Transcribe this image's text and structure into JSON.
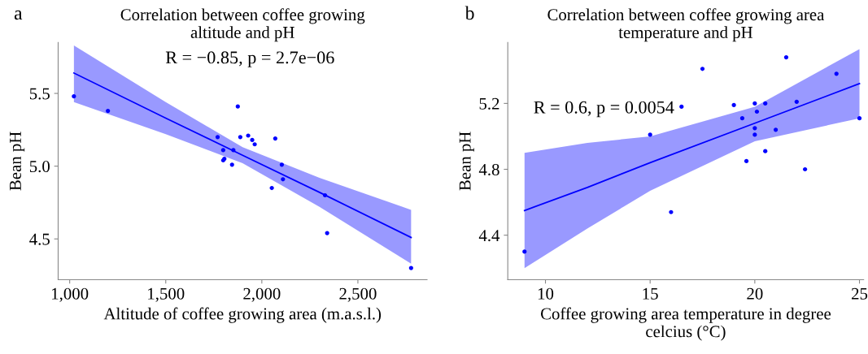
{
  "chart_data": [
    {
      "type": "scatter",
      "title": "Correlation between coffee growing\naltitude and pH",
      "xlabel": "Altitude of coffee growing area (m.a.s.l.)",
      "ylabel": "Bean pH",
      "annotations": [
        "a",
        "R = −0.85, p = 2.7e−06"
      ],
      "xlim": [
        940,
        2860
      ],
      "xticks": [
        {
          "value": 1000,
          "label": "1,000"
        },
        {
          "value": 1500,
          "label": "1,500"
        },
        {
          "value": 2000,
          "label": "2,000"
        },
        {
          "value": 2500,
          "label": "2,500"
        }
      ],
      "ylim": [
        4.22,
        5.85
      ],
      "yticks": [
        4.5,
        {
          "value": 5.0,
          "label": "5.0"
        },
        5.5
      ],
      "grid": false,
      "series": [
        {
          "marker": "circle",
          "color": "#0000ff",
          "x": [
            1022,
            1199,
            1770,
            1875,
            1799,
            1852,
            1799,
            1805,
            1845,
            1888,
            1929,
            1950,
            1963,
            2070,
            2104,
            2110,
            2052,
            2329,
            2340,
            2777
          ],
          "values": [
            5.48,
            5.38,
            5.2,
            5.41,
            5.11,
            5.11,
            5.04,
            5.05,
            5.01,
            5.2,
            5.21,
            5.18,
            5.15,
            5.19,
            5.01,
            4.91,
            4.85,
            4.8,
            4.54,
            4.3
          ]
        },
        {
          "type": "line",
          "color": "#0000ff",
          "x": [
            1022,
            1500,
            1900,
            2300,
            2777
          ],
          "values": [
            5.64,
            5.33,
            5.075,
            4.82,
            4.51
          ],
          "lower": [
            5.44,
            5.22,
            5.02,
            4.72,
            4.33
          ],
          "upper": [
            5.83,
            5.44,
            5.13,
            4.92,
            4.7
          ]
        }
      ]
    },
    {
      "type": "scatter",
      "title": "Correlation between coffee growing area\ntemperature and pH",
      "xlabel": "Coffee growing area temperature in degree\ncelcius (°C)",
      "ylabel": "Bean pH",
      "annotations": [
        "b",
        "R = 0.6, p = 0.0054"
      ],
      "xlim": [
        8.2,
        25.2
      ],
      "xticks": [
        10,
        15,
        20,
        25
      ],
      "ylim": [
        4.13,
        5.57
      ],
      "yticks": [
        4.4,
        4.8,
        5.2
      ],
      "grid": false,
      "series": [
        {
          "marker": "circle",
          "color": "#0000ff",
          "x": [
            9.0,
            15.0,
            16.0,
            16.5,
            17.5,
            19.0,
            19.4,
            19.6,
            20.0,
            20.0,
            20.0,
            20.1,
            20.5,
            20.5,
            21.0,
            21.5,
            22.0,
            22.4,
            23.9,
            25.0
          ],
          "values": [
            4.3,
            5.01,
            4.54,
            5.18,
            5.41,
            5.19,
            5.11,
            4.85,
            5.2,
            5.05,
            5.01,
            5.15,
            5.2,
            4.91,
            5.04,
            5.48,
            5.21,
            4.8,
            5.38,
            5.11
          ]
        },
        {
          "type": "line",
          "color": "#0000ff",
          "x": [
            9,
            12,
            15,
            20,
            25
          ],
          "values": [
            4.55,
            4.69,
            4.84,
            5.08,
            5.32
          ],
          "lower": [
            4.2,
            4.44,
            4.67,
            4.97,
            5.11
          ],
          "upper": [
            4.9,
            4.96,
            5.0,
            5.18,
            5.53
          ]
        }
      ]
    }
  ]
}
